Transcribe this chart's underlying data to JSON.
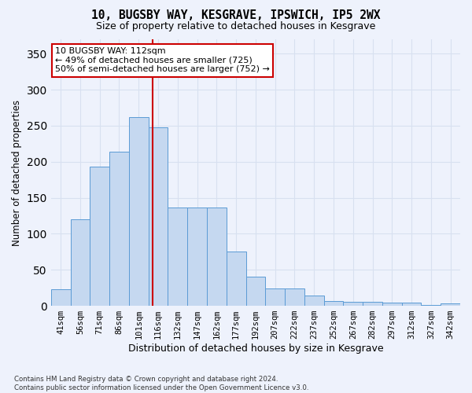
{
  "title_line1": "10, BUGSBY WAY, KESGRAVE, IPSWICH, IP5 2WX",
  "title_line2": "Size of property relative to detached houses in Kesgrave",
  "xlabel": "Distribution of detached houses by size in Kesgrave",
  "ylabel": "Number of detached properties",
  "categories": [
    "41sqm",
    "56sqm",
    "71sqm",
    "86sqm",
    "101sqm",
    "116sqm",
    "132sqm",
    "147sqm",
    "162sqm",
    "177sqm",
    "192sqm",
    "207sqm",
    "222sqm",
    "237sqm",
    "252sqm",
    "267sqm",
    "282sqm",
    "297sqm",
    "312sqm",
    "327sqm",
    "342sqm"
  ],
  "values": [
    23,
    120,
    193,
    214,
    262,
    248,
    136,
    136,
    136,
    75,
    40,
    24,
    24,
    14,
    7,
    6,
    6,
    4,
    4,
    1,
    3
  ],
  "bar_color": "#c5d8f0",
  "bar_edge_color": "#5b9bd5",
  "vline_color": "#cc0000",
  "annotation_text": "10 BUGSBY WAY: 112sqm\n← 49% of detached houses are smaller (725)\n50% of semi-detached houses are larger (752) →",
  "annotation_box_color": "#ffffff",
  "annotation_box_edge": "#cc0000",
  "footer": "Contains HM Land Registry data © Crown copyright and database right 2024.\nContains public sector information licensed under the Open Government Licence v3.0.",
  "ylim": [
    0,
    370
  ],
  "background_color": "#eef2fc",
  "grid_color": "#d8e0f0"
}
